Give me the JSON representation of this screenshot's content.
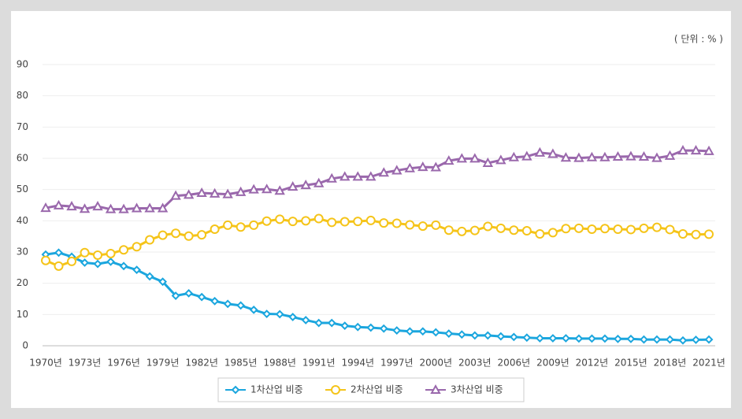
{
  "chart_data": {
    "type": "line",
    "unit_note": "( 단위 : % )",
    "categories": [
      "1970년",
      null,
      null,
      "1973년",
      null,
      null,
      "1976년",
      null,
      null,
      "1979년",
      null,
      null,
      "1982년",
      null,
      null,
      "1985년",
      null,
      null,
      "1988년",
      null,
      null,
      "1991년",
      null,
      null,
      "1994년",
      null,
      null,
      "1997년",
      null,
      null,
      "2000년",
      null,
      null,
      "2003년",
      null,
      null,
      "2006년",
      null,
      null,
      "2009년",
      null,
      null,
      "2012년",
      null,
      null,
      "2015년",
      null,
      null,
      "2018년",
      null,
      null,
      "2021년"
    ],
    "series": [
      {
        "name": "1차산업 비중",
        "color": "#1ba6de",
        "marker": "diamond",
        "values": [
          29.2,
          29.8,
          28.5,
          26.6,
          26.2,
          26.9,
          25.5,
          24.3,
          22.2,
          20.5,
          16.0,
          16.8,
          15.6,
          14.3,
          13.4,
          12.9,
          11.5,
          10.2,
          10.1,
          9.2,
          8.2,
          7.3,
          7.3,
          6.4,
          6.0,
          5.8,
          5.5,
          4.9,
          4.6,
          4.6,
          4.3,
          3.9,
          3.6,
          3.3,
          3.3,
          3.0,
          2.8,
          2.6,
          2.4,
          2.4,
          2.4,
          2.3,
          2.3,
          2.3,
          2.2,
          2.2,
          2.0,
          2.0,
          2.0,
          1.7,
          1.9,
          2.0
        ]
      },
      {
        "name": "2차산업 비중",
        "color": "#f5c419",
        "marker": "circle",
        "values": [
          27.3,
          25.5,
          27.0,
          29.8,
          29.0,
          29.5,
          30.7,
          31.7,
          33.9,
          35.4,
          36.0,
          35.1,
          35.5,
          37.3,
          38.6,
          38.0,
          38.6,
          39.9,
          40.5,
          39.8,
          40.0,
          40.7,
          39.5,
          39.7,
          39.8,
          40.1,
          39.3,
          39.2,
          38.7,
          38.3,
          38.6,
          37.0,
          36.6,
          36.9,
          38.2,
          37.6,
          37.0,
          36.8,
          35.8,
          36.2,
          37.5,
          37.6,
          37.3,
          37.5,
          37.3,
          37.2,
          37.6,
          37.9,
          37.2,
          35.8,
          35.6,
          35.7
        ]
      },
      {
        "name": "3차산업 비중",
        "color": "#9a68ac",
        "marker": "triangle",
        "values": [
          44.1,
          44.9,
          44.6,
          43.8,
          44.6,
          43.7,
          43.7,
          44.0,
          44.0,
          44.0,
          48.0,
          48.3,
          48.9,
          48.7,
          48.5,
          49.2,
          50.0,
          50.1,
          49.6,
          50.9,
          51.4,
          52.0,
          53.5,
          54.1,
          54.1,
          54.1,
          55.4,
          56.1,
          56.8,
          57.2,
          57.1,
          59.2,
          59.9,
          59.9,
          58.5,
          59.4,
          60.3,
          60.6,
          61.8,
          61.4,
          60.2,
          60.1,
          60.3,
          60.3,
          60.5,
          60.6,
          60.5,
          60.1,
          60.8,
          62.5,
          62.5,
          62.3
        ]
      }
    ],
    "ylim": [
      0,
      90
    ],
    "yticks": [
      0,
      10,
      20,
      30,
      40,
      50,
      60,
      70,
      80,
      90
    ],
    "grid": true
  }
}
